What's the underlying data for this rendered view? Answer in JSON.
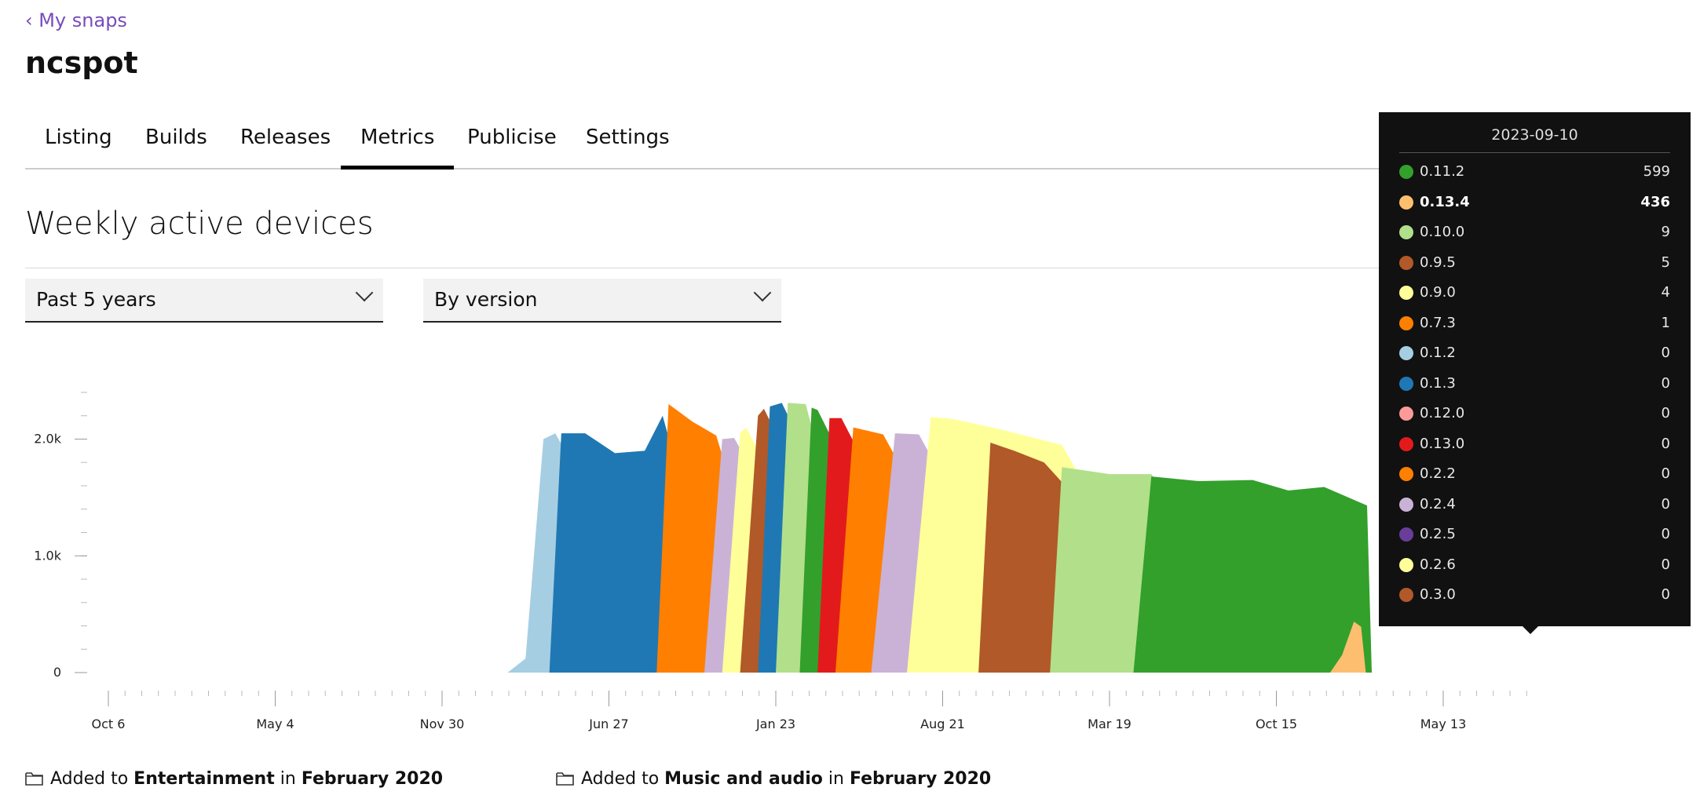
{
  "nav": {
    "back_label": "‹ My snaps"
  },
  "app": {
    "title": "ncspot"
  },
  "tabs": [
    {
      "label": "Listing",
      "active": false
    },
    {
      "label": "Builds",
      "active": false
    },
    {
      "label": "Releases",
      "active": false
    },
    {
      "label": "Metrics",
      "active": true
    },
    {
      "label": "Publicise",
      "active": false
    },
    {
      "label": "Settings",
      "active": false
    }
  ],
  "section": {
    "title": "Weekly active devices"
  },
  "filters": {
    "period": {
      "selected": "Past 5 years"
    },
    "group_by": {
      "selected": "By version"
    }
  },
  "categories_meta": [
    {
      "prefix": "Added to",
      "category": "Entertainment",
      "mid": "in",
      "date": "February 2020",
      "icon": "folder-icon"
    },
    {
      "prefix": "Added to",
      "category": "Music and audio",
      "mid": "in",
      "date": "February 2020",
      "icon": "folder-icon"
    }
  ],
  "tooltip": {
    "date": "2023-09-10",
    "rows": [
      {
        "version": "0.11.2",
        "value": "599",
        "color": "#33a02c",
        "bold": false
      },
      {
        "version": "0.13.4",
        "value": "436",
        "color": "#fdbf6f",
        "bold": true
      },
      {
        "version": "0.10.0",
        "value": "9",
        "color": "#b2df8a",
        "bold": false
      },
      {
        "version": "0.9.5",
        "value": "5",
        "color": "#b15928",
        "bold": false
      },
      {
        "version": "0.9.0",
        "value": "4",
        "color": "#ffff99",
        "bold": false
      },
      {
        "version": "0.7.3",
        "value": "1",
        "color": "#ff7f00",
        "bold": false
      },
      {
        "version": "0.1.2",
        "value": "0",
        "color": "#a6cee3",
        "bold": false
      },
      {
        "version": "0.1.3",
        "value": "0",
        "color": "#1f78b4",
        "bold": false
      },
      {
        "version": "0.12.0",
        "value": "0",
        "color": "#fb9a99",
        "bold": false
      },
      {
        "version": "0.13.0",
        "value": "0",
        "color": "#e31a1c",
        "bold": false
      },
      {
        "version": "0.2.2",
        "value": "0",
        "color": "#ff7f00",
        "bold": false
      },
      {
        "version": "0.2.4",
        "value": "0",
        "color": "#cab2d6",
        "bold": false
      },
      {
        "version": "0.2.5",
        "value": "0",
        "color": "#6a3d9a",
        "bold": false
      },
      {
        "version": "0.2.6",
        "value": "0",
        "color": "#ffff99",
        "bold": false
      },
      {
        "version": "0.3.0",
        "value": "0",
        "color": "#b15928",
        "bold": false
      }
    ]
  },
  "chart_data": {
    "type": "area",
    "stacked": true,
    "x_axis": {
      "ticks": [
        "Oct 6",
        "May 4",
        "Nov 30",
        "Jun 27",
        "Jan 23",
        "Aug 21",
        "Mar 19",
        "Oct 15",
        "May 13"
      ]
    },
    "y_axis": {
      "ticks": [
        0,
        1000,
        2000
      ],
      "tick_labels": [
        "0",
        "1.0k",
        "2.0k"
      ],
      "ylim": [
        0,
        2400
      ]
    },
    "x_range": [
      0,
      239
    ],
    "series": [
      {
        "key": "v0.1.2",
        "color": "#a6cee3",
        "points": [
          [
            67,
            0
          ],
          [
            70,
            120
          ],
          [
            73,
            2000
          ],
          [
            75,
            2050
          ]
        ],
        "fall": [
          76,
          100
        ]
      },
      {
        "key": "v0.1.3",
        "color": "#1f78b4",
        "points": [
          [
            74,
            0
          ],
          [
            76,
            2050
          ],
          [
            80,
            2050
          ],
          [
            85,
            1880
          ],
          [
            90,
            1900
          ],
          [
            93,
            2200
          ]
        ],
        "fall": [
          93,
          1200
        ]
      },
      {
        "key": "v0.2.2",
        "color": "#ff7f00",
        "points": [
          [
            92,
            0
          ],
          [
            94,
            2300
          ],
          [
            98,
            2150
          ],
          [
            102,
            2030
          ]
        ],
        "fall": [
          102,
          900
        ]
      },
      {
        "key": "v0.2.4",
        "color": "#cab2d6",
        "points": [
          [
            100,
            0
          ],
          [
            103,
            2000
          ],
          [
            105,
            2010
          ]
        ],
        "fall": [
          106,
          500
        ]
      },
      {
        "key": "v0.2.6",
        "color": "#ffff99",
        "points": [
          [
            103,
            0
          ],
          [
            106,
            2050
          ],
          [
            107,
            2100
          ]
        ],
        "fall": [
          108,
          400
        ]
      },
      {
        "key": "v0.3.0",
        "color": "#b15928",
        "points": [
          [
            106,
            0
          ],
          [
            109,
            2200
          ],
          [
            110,
            2260
          ]
        ],
        "fall": [
          111,
          300
        ]
      },
      {
        "key": "v0.4.0",
        "color": "#1f78b4",
        "points": [
          [
            109,
            0
          ],
          [
            111,
            2280
          ],
          [
            113,
            2310
          ]
        ],
        "fall": [
          114,
          300
        ]
      },
      {
        "key": "v0.5.0",
        "color": "#b2df8a",
        "points": [
          [
            112,
            0
          ],
          [
            114,
            2310
          ],
          [
            117,
            2300
          ]
        ],
        "fall": [
          117,
          300
        ]
      },
      {
        "key": "v0.6.0",
        "color": "#33a02c",
        "points": [
          [
            116,
            0
          ],
          [
            118,
            2270
          ],
          [
            119,
            2250
          ]
        ],
        "fall": [
          120,
          300
        ]
      },
      {
        "key": "v0.7.0",
        "color": "#e31a1c",
        "points": [
          [
            119,
            0
          ],
          [
            121,
            2180
          ],
          [
            123,
            2180
          ]
        ],
        "fall": [
          124,
          300
        ]
      },
      {
        "key": "v0.7.3",
        "color": "#ff7f00",
        "points": [
          [
            122,
            0
          ],
          [
            125,
            2100
          ],
          [
            130,
            2040
          ]
        ],
        "fall": [
          131,
          250
        ]
      },
      {
        "key": "v0.8.0",
        "color": "#cab2d6",
        "points": [
          [
            128,
            0
          ],
          [
            132,
            2050
          ],
          [
            136,
            2040
          ]
        ],
        "fall": [
          137,
          300
        ]
      },
      {
        "key": "v0.9.0",
        "color": "#ffff99",
        "points": [
          [
            134,
            0
          ],
          [
            138,
            2190
          ],
          [
            142,
            2170
          ],
          [
            150,
            2080
          ],
          [
            160,
            1950
          ]
        ],
        "fall": [
          161,
          100
        ]
      },
      {
        "key": "v0.9.5",
        "color": "#b15928",
        "points": [
          [
            146,
            0
          ],
          [
            148,
            1970
          ],
          [
            152,
            1900
          ],
          [
            157,
            1800
          ]
        ],
        "fall": [
          159,
          50
        ]
      },
      {
        "key": "v0.10.0",
        "color": "#b2df8a",
        "points": [
          [
            158,
            0
          ],
          [
            160,
            1760
          ],
          [
            168,
            1700
          ],
          [
            175,
            1700
          ]
        ],
        "fall": [
          176,
          30
        ]
      },
      {
        "key": "v0.11.2",
        "color": "#33a02c",
        "points": [
          [
            172,
            0
          ],
          [
            175,
            1680
          ],
          [
            183,
            1640
          ],
          [
            192,
            1650
          ],
          [
            198,
            1560
          ],
          [
            204,
            1590
          ]
        ],
        "fall": [
          210,
          600
        ]
      },
      {
        "key": "v0.13.4",
        "color": "#fdbf6f",
        "points": [
          [
            205,
            0
          ],
          [
            207,
            150
          ],
          [
            209,
            436
          ]
        ],
        "fall": [
          209,
          436
        ]
      }
    ]
  }
}
